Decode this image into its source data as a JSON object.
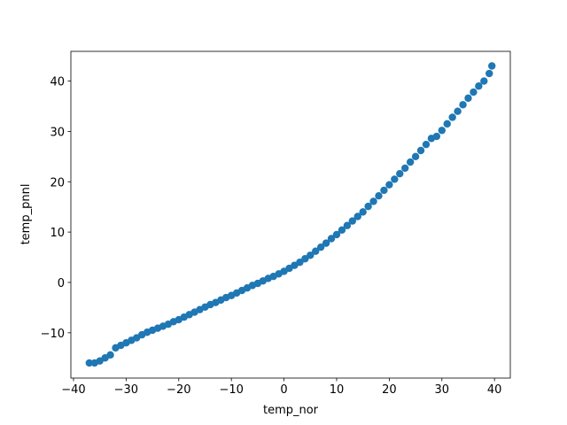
{
  "chart_data": {
    "type": "scatter",
    "x_label": "temp_nor",
    "y_label": "temp_pnnl",
    "color": "#1f77b4",
    "x": [
      -37,
      -36,
      -35,
      -34,
      -33,
      -32,
      -31,
      -30,
      -29,
      -28,
      -27,
      -26,
      -25,
      -24,
      -23,
      -22,
      -21,
      -20,
      -19,
      -18,
      -17,
      -16,
      -15,
      -14,
      -13,
      -12,
      -11,
      -10,
      -9,
      -8,
      -7,
      -6,
      -5,
      -4,
      -3,
      -2,
      -1,
      0,
      1,
      2,
      3,
      4,
      5,
      6,
      7,
      8,
      9,
      10,
      11,
      12,
      13,
      14,
      15,
      16,
      17,
      18,
      19,
      20,
      21,
      22,
      23,
      24,
      25,
      26,
      27,
      28,
      29,
      30,
      31,
      32,
      33,
      34,
      35,
      36,
      37,
      38,
      39,
      39.5
    ],
    "y": [
      -16,
      -16,
      -15.6,
      -15,
      -14.4,
      -13,
      -12.5,
      -12,
      -11.5,
      -11,
      -10.4,
      -9.9,
      -9.5,
      -9.1,
      -8.7,
      -8.3,
      -7.8,
      -7.4,
      -6.9,
      -6.4,
      -5.9,
      -5.4,
      -4.9,
      -4.4,
      -4,
      -3.5,
      -3,
      -2.6,
      -2.1,
      -1.6,
      -1.1,
      -0.6,
      -0.2,
      0.3,
      0.8,
      1.2,
      1.7,
      2.2,
      2.8,
      3.4,
      4,
      4.7,
      5.4,
      6.2,
      7,
      7.8,
      8.7,
      9.5,
      10.4,
      11.3,
      12.2,
      13.1,
      14,
      15.1,
      16.1,
      17.2,
      18.3,
      19.4,
      20.5,
      21.6,
      22.7,
      23.9,
      25,
      26.2,
      27.4,
      28.6,
      29,
      30.2,
      31.5,
      32.8,
      34,
      35.3,
      36.6,
      37.8,
      39,
      40,
      41.5,
      43
    ],
    "xlim": [
      -40.5,
      43.0
    ],
    "ylim": [
      -19.0,
      45.9
    ],
    "xticks": [
      {
        "value": -40,
        "label": "−40"
      },
      {
        "value": -30,
        "label": "−30"
      },
      {
        "value": -20,
        "label": "−20"
      },
      {
        "value": -10,
        "label": "−10"
      },
      0,
      10,
      20,
      30,
      40
    ],
    "yticks": [
      {
        "value": -10,
        "label": "−10"
      },
      0,
      10,
      20,
      30,
      40
    ]
  }
}
